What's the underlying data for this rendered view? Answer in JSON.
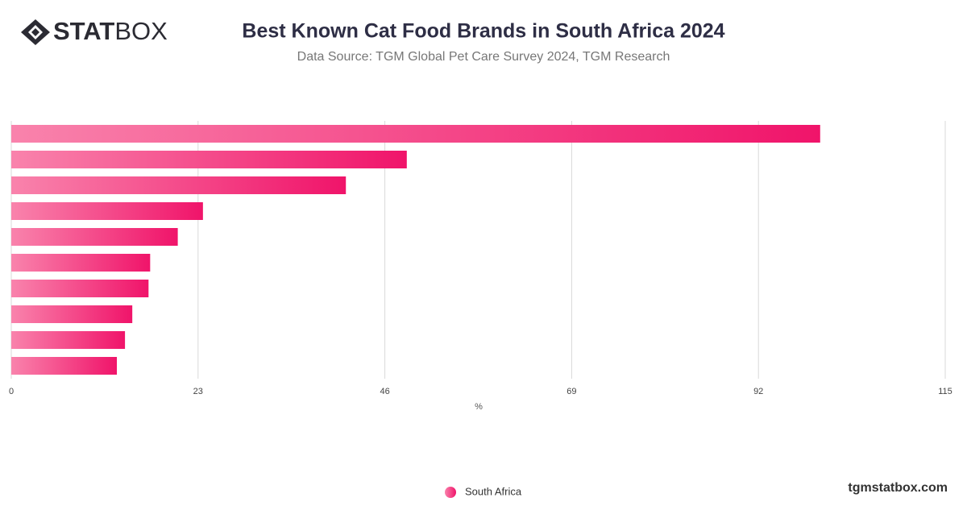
{
  "chart_data": {
    "type": "bar",
    "orientation": "horizontal",
    "title": "Best Known Cat Food Brands in South Africa 2024",
    "subtitle": "Data Source: TGM Global Pet Care Survey 2024, TGM Research",
    "categories": [
      null,
      null,
      null,
      null,
      null,
      null,
      null,
      null,
      null,
      null
    ],
    "series": [
      {
        "name": "South Africa",
        "color": "#f0146a",
        "values": [
          99.6,
          48.7,
          41.2,
          23.6,
          20.5,
          17.1,
          16.9,
          14.9,
          14.0,
          13.0
        ]
      }
    ],
    "xlabel": "%",
    "xlim": [
      0,
      115
    ],
    "xticks": [
      0,
      23,
      46,
      69,
      92,
      115
    ],
    "grid": true,
    "legend": "bottom"
  },
  "brand": {
    "logo_bold": "STAT",
    "logo_light": "BOX",
    "site": "tgmstatbox.com"
  }
}
